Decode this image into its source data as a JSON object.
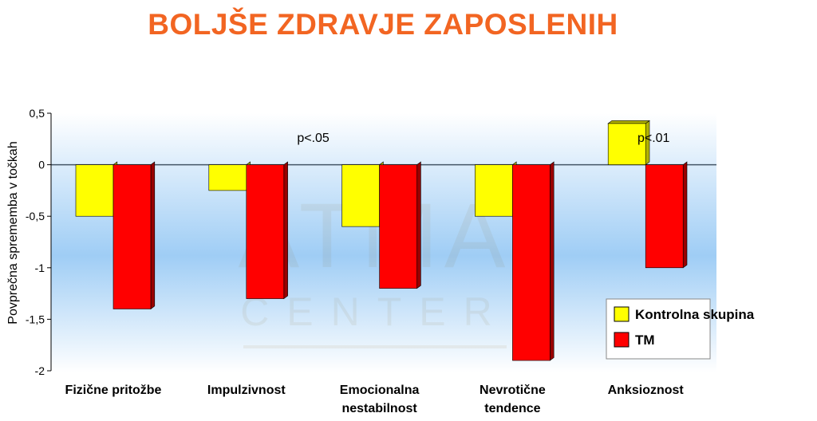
{
  "title": "BOLJŠE ZDRAVJE ZAPOSLENIH",
  "watermark": {
    "line1": "ATMA",
    "line2": "CENTER"
  },
  "colors": {
    "title": "#f26522",
    "kontrolna": "#ffff00",
    "kontrolna_side": "#b3b300",
    "tm": "#ff0000",
    "tm_side": "#990000",
    "plot_bg_top": "#ffffff",
    "plot_bg_mid": "#9fcdf5"
  },
  "chart_data": {
    "type": "bar",
    "categories": [
      [
        "Fizične pritožbe"
      ],
      [
        "Impulzivnost"
      ],
      [
        "Emocionalna",
        "nestabilnost"
      ],
      [
        "Nevrotične",
        "tendence"
      ],
      [
        "Anksioznost"
      ]
    ],
    "series": [
      {
        "name": "Kontrolna skupina",
        "values": [
          -0.5,
          -0.25,
          -0.6,
          -0.5,
          0.4
        ]
      },
      {
        "name": "TM",
        "values": [
          -1.4,
          -1.3,
          -1.2,
          -1.9,
          -1.0
        ]
      }
    ],
    "ylabel": "Povprečna sprememba v točkah",
    "ylim": [
      -2,
      0.5
    ],
    "yticks": [
      0.5,
      0,
      -0.5,
      -1,
      -1.5,
      -2
    ],
    "ytick_labels": [
      "0,5",
      "0",
      "-0,5",
      "-1",
      "-1,5",
      "-2"
    ],
    "annotations": [
      {
        "text": "p<.05",
        "near_category": 2
      },
      {
        "text": "p<.01",
        "near_category": 4
      }
    ],
    "legend_position": "bottom-right"
  }
}
